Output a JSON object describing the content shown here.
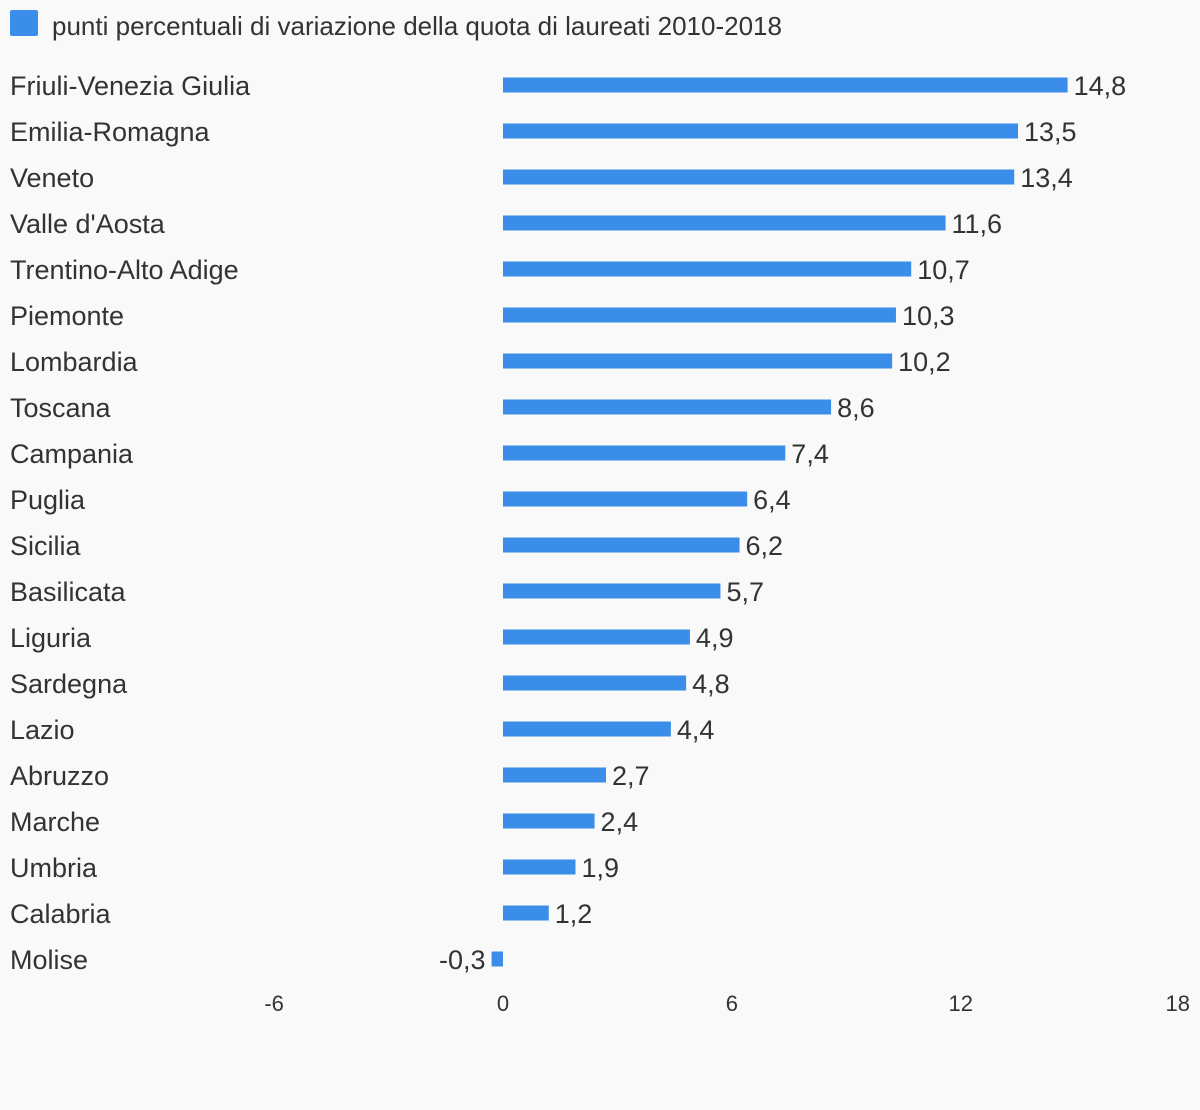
{
  "chart_data": {
    "type": "bar",
    "orientation": "horizontal",
    "legend_position": "top-left",
    "grid": false,
    "series": [
      {
        "name": "punti percentuali di variazione della quota di laureati 2010-2018",
        "color": "#3a8de8",
        "values": [
          14.8,
          13.5,
          13.4,
          11.6,
          10.7,
          10.3,
          10.2,
          8.6,
          7.4,
          6.4,
          6.2,
          5.7,
          4.9,
          4.8,
          4.4,
          2.7,
          2.4,
          1.9,
          1.2,
          -0.3
        ],
        "value_labels": [
          "14,8",
          "13,5",
          "13,4",
          "11,6",
          "10,7",
          "10,3",
          "10,2",
          "8,6",
          "7,4",
          "6,4",
          "6,2",
          "5,7",
          "4,9",
          "4,8",
          "4,4",
          "2,7",
          "2,4",
          "1,9",
          "1,2",
          "-0,3"
        ]
      }
    ],
    "categories": [
      "Friuli-Venezia Giulia",
      "Emilia-Romagna",
      "Veneto",
      "Valle d'Aosta",
      "Trentino-Alto Adige",
      "Piemonte",
      "Lombardia",
      "Toscana",
      "Campania",
      "Puglia",
      "Sicilia",
      "Basilicata",
      "Liguria",
      "Sardegna",
      "Lazio",
      "Abruzzo",
      "Marche",
      "Umbria",
      "Calabria",
      "Molise"
    ],
    "xlim": [
      -6,
      18
    ],
    "xticks": [
      -6,
      0,
      6,
      12,
      18
    ],
    "xtick_labels": [
      "-6",
      "0",
      "6",
      "12",
      "18"
    ]
  }
}
